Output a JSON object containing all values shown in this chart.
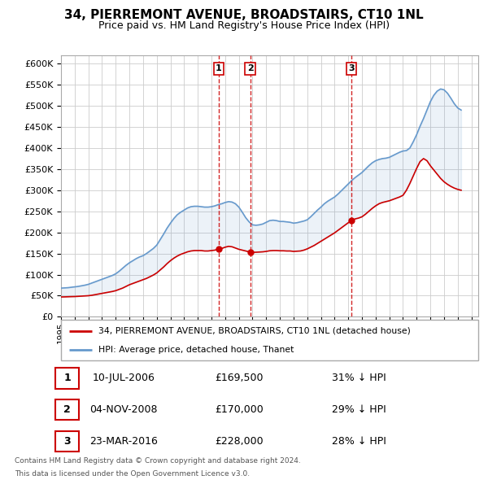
{
  "title": "34, PIERREMONT AVENUE, BROADSTAIRS, CT10 1NL",
  "subtitle": "Price paid vs. HM Land Registry's House Price Index (HPI)",
  "ytick_values": [
    0,
    50000,
    100000,
    150000,
    200000,
    250000,
    300000,
    350000,
    400000,
    450000,
    500000,
    550000,
    600000
  ],
  "xlim_start": 1995.0,
  "xlim_end": 2025.5,
  "ylim_min": 0,
  "ylim_max": 620000,
  "transactions": [
    {
      "label": "1",
      "date": "10-JUL-2006",
      "price": 169500,
      "hpi_diff": "31% ↓ HPI",
      "x": 2006.53
    },
    {
      "label": "2",
      "date": "04-NOV-2008",
      "price": 170000,
      "hpi_diff": "29% ↓ HPI",
      "x": 2008.84
    },
    {
      "label": "3",
      "date": "23-MAR-2016",
      "price": 228000,
      "hpi_diff": "28% ↓ HPI",
      "x": 2016.23
    }
  ],
  "legend_line1": "34, PIERREMONT AVENUE, BROADSTAIRS, CT10 1NL (detached house)",
  "legend_line2": "HPI: Average price, detached house, Thanet",
  "footnote1": "Contains HM Land Registry data © Crown copyright and database right 2024.",
  "footnote2": "This data is licensed under the Open Government Licence v3.0.",
  "line_color_red": "#cc0000",
  "line_color_blue": "#6699cc",
  "vline_color": "#cc0000",
  "grid_color": "#cccccc",
  "background_color": "#ffffff",
  "hpi_data_x": [
    1995.0,
    1995.25,
    1995.5,
    1995.75,
    1996.0,
    1996.25,
    1996.5,
    1996.75,
    1997.0,
    1997.25,
    1997.5,
    1997.75,
    1998.0,
    1998.25,
    1998.5,
    1998.75,
    1999.0,
    1999.25,
    1999.5,
    1999.75,
    2000.0,
    2000.25,
    2000.5,
    2000.75,
    2001.0,
    2001.25,
    2001.5,
    2001.75,
    2002.0,
    2002.25,
    2002.5,
    2002.75,
    2003.0,
    2003.25,
    2003.5,
    2003.75,
    2004.0,
    2004.25,
    2004.5,
    2004.75,
    2005.0,
    2005.25,
    2005.5,
    2005.75,
    2006.0,
    2006.25,
    2006.5,
    2006.75,
    2007.0,
    2007.25,
    2007.5,
    2007.75,
    2008.0,
    2008.25,
    2008.5,
    2008.75,
    2009.0,
    2009.25,
    2009.5,
    2009.75,
    2010.0,
    2010.25,
    2010.5,
    2010.75,
    2011.0,
    2011.25,
    2011.5,
    2011.75,
    2012.0,
    2012.25,
    2012.5,
    2012.75,
    2013.0,
    2013.25,
    2013.5,
    2013.75,
    2014.0,
    2014.25,
    2014.5,
    2014.75,
    2015.0,
    2015.25,
    2015.5,
    2015.75,
    2016.0,
    2016.25,
    2016.5,
    2016.75,
    2017.0,
    2017.25,
    2017.5,
    2017.75,
    2018.0,
    2018.25,
    2018.5,
    2018.75,
    2019.0,
    2019.25,
    2019.5,
    2019.75,
    2020.0,
    2020.25,
    2020.5,
    2020.75,
    2021.0,
    2021.25,
    2021.5,
    2021.75,
    2022.0,
    2022.25,
    2022.5,
    2022.75,
    2023.0,
    2023.25,
    2023.5,
    2023.75,
    2024.0,
    2024.25
  ],
  "hpi_data_y": [
    68000,
    68500,
    69000,
    70000,
    71000,
    72000,
    73500,
    75000,
    77000,
    80000,
    83000,
    86000,
    89000,
    92000,
    95000,
    98000,
    102000,
    108000,
    115000,
    122000,
    128000,
    133000,
    138000,
    142000,
    145000,
    150000,
    156000,
    162000,
    170000,
    183000,
    196000,
    210000,
    222000,
    233000,
    242000,
    248000,
    253000,
    258000,
    261000,
    262000,
    262000,
    261000,
    260000,
    260000,
    261000,
    263000,
    266000,
    268000,
    271000,
    273000,
    272000,
    268000,
    260000,
    248000,
    235000,
    225000,
    218000,
    217000,
    218000,
    220000,
    224000,
    228000,
    229000,
    228000,
    226000,
    226000,
    225000,
    224000,
    222000,
    223000,
    225000,
    227000,
    230000,
    237000,
    245000,
    253000,
    260000,
    268000,
    274000,
    279000,
    284000,
    291000,
    299000,
    307000,
    315000,
    323000,
    330000,
    336000,
    342000,
    350000,
    358000,
    365000,
    370000,
    373000,
    375000,
    376000,
    378000,
    382000,
    386000,
    390000,
    393000,
    394000,
    400000,
    415000,
    432000,
    452000,
    470000,
    490000,
    510000,
    525000,
    535000,
    540000,
    538000,
    530000,
    518000,
    505000,
    495000,
    490000
  ],
  "price_data_x": [
    1995.0,
    1995.25,
    1995.5,
    1995.75,
    1996.0,
    1996.25,
    1996.5,
    1996.75,
    1997.0,
    1997.25,
    1997.5,
    1997.75,
    1998.0,
    1998.25,
    1998.5,
    1998.75,
    1999.0,
    1999.25,
    1999.5,
    1999.75,
    2000.0,
    2000.25,
    2000.5,
    2000.75,
    2001.0,
    2001.25,
    2001.5,
    2001.75,
    2002.0,
    2002.25,
    2002.5,
    2002.75,
    2003.0,
    2003.25,
    2003.5,
    2003.75,
    2004.0,
    2004.25,
    2004.5,
    2004.75,
    2005.0,
    2005.25,
    2005.5,
    2005.75,
    2006.0,
    2006.25,
    2006.5,
    2006.75,
    2007.0,
    2007.25,
    2007.5,
    2007.75,
    2008.0,
    2008.25,
    2008.5,
    2008.75,
    2009.0,
    2009.25,
    2009.5,
    2009.75,
    2010.0,
    2010.25,
    2010.5,
    2010.75,
    2011.0,
    2011.25,
    2011.5,
    2011.75,
    2012.0,
    2012.25,
    2012.5,
    2012.75,
    2013.0,
    2013.25,
    2013.5,
    2013.75,
    2014.0,
    2014.25,
    2014.5,
    2014.75,
    2015.0,
    2015.25,
    2015.5,
    2015.75,
    2016.0,
    2016.25,
    2016.5,
    2016.75,
    2017.0,
    2017.25,
    2017.5,
    2017.75,
    2018.0,
    2018.25,
    2018.5,
    2018.75,
    2019.0,
    2019.25,
    2019.5,
    2019.75,
    2020.0,
    2020.25,
    2020.5,
    2020.75,
    2021.0,
    2021.25,
    2021.5,
    2021.75,
    2022.0,
    2022.25,
    2022.5,
    2022.75,
    2023.0,
    2023.25,
    2023.5,
    2023.75,
    2024.0,
    2024.25
  ],
  "price_data_y": [
    47000,
    47200,
    47500,
    47800,
    48000,
    48500,
    49000,
    49500,
    50000,
    51000,
    52500,
    54000,
    55500,
    57000,
    58500,
    60000,
    62000,
    65000,
    68000,
    72000,
    76000,
    79000,
    82000,
    85000,
    88000,
    91000,
    95000,
    99000,
    104000,
    111000,
    118000,
    126000,
    133000,
    139000,
    144000,
    148000,
    151000,
    154000,
    156000,
    157000,
    157000,
    157000,
    156000,
    156000,
    157000,
    158000,
    160000,
    162000,
    165000,
    167000,
    166000,
    163000,
    160000,
    158000,
    156000,
    154000,
    153000,
    153000,
    153500,
    154000,
    155000,
    156500,
    157000,
    157000,
    156500,
    156500,
    156000,
    156000,
    155000,
    155500,
    156000,
    158000,
    161000,
    165000,
    169000,
    174000,
    179000,
    184000,
    189000,
    194000,
    199000,
    205000,
    211000,
    217000,
    223000,
    228000,
    232000,
    234000,
    237000,
    243000,
    250000,
    257000,
    263000,
    268000,
    271000,
    273000,
    275000,
    278000,
    281000,
    284000,
    288000,
    300000,
    316000,
    334000,
    352000,
    368000,
    375000,
    370000,
    358000,
    348000,
    338000,
    328000,
    320000,
    314000,
    309000,
    305000,
    302000,
    300000
  ]
}
